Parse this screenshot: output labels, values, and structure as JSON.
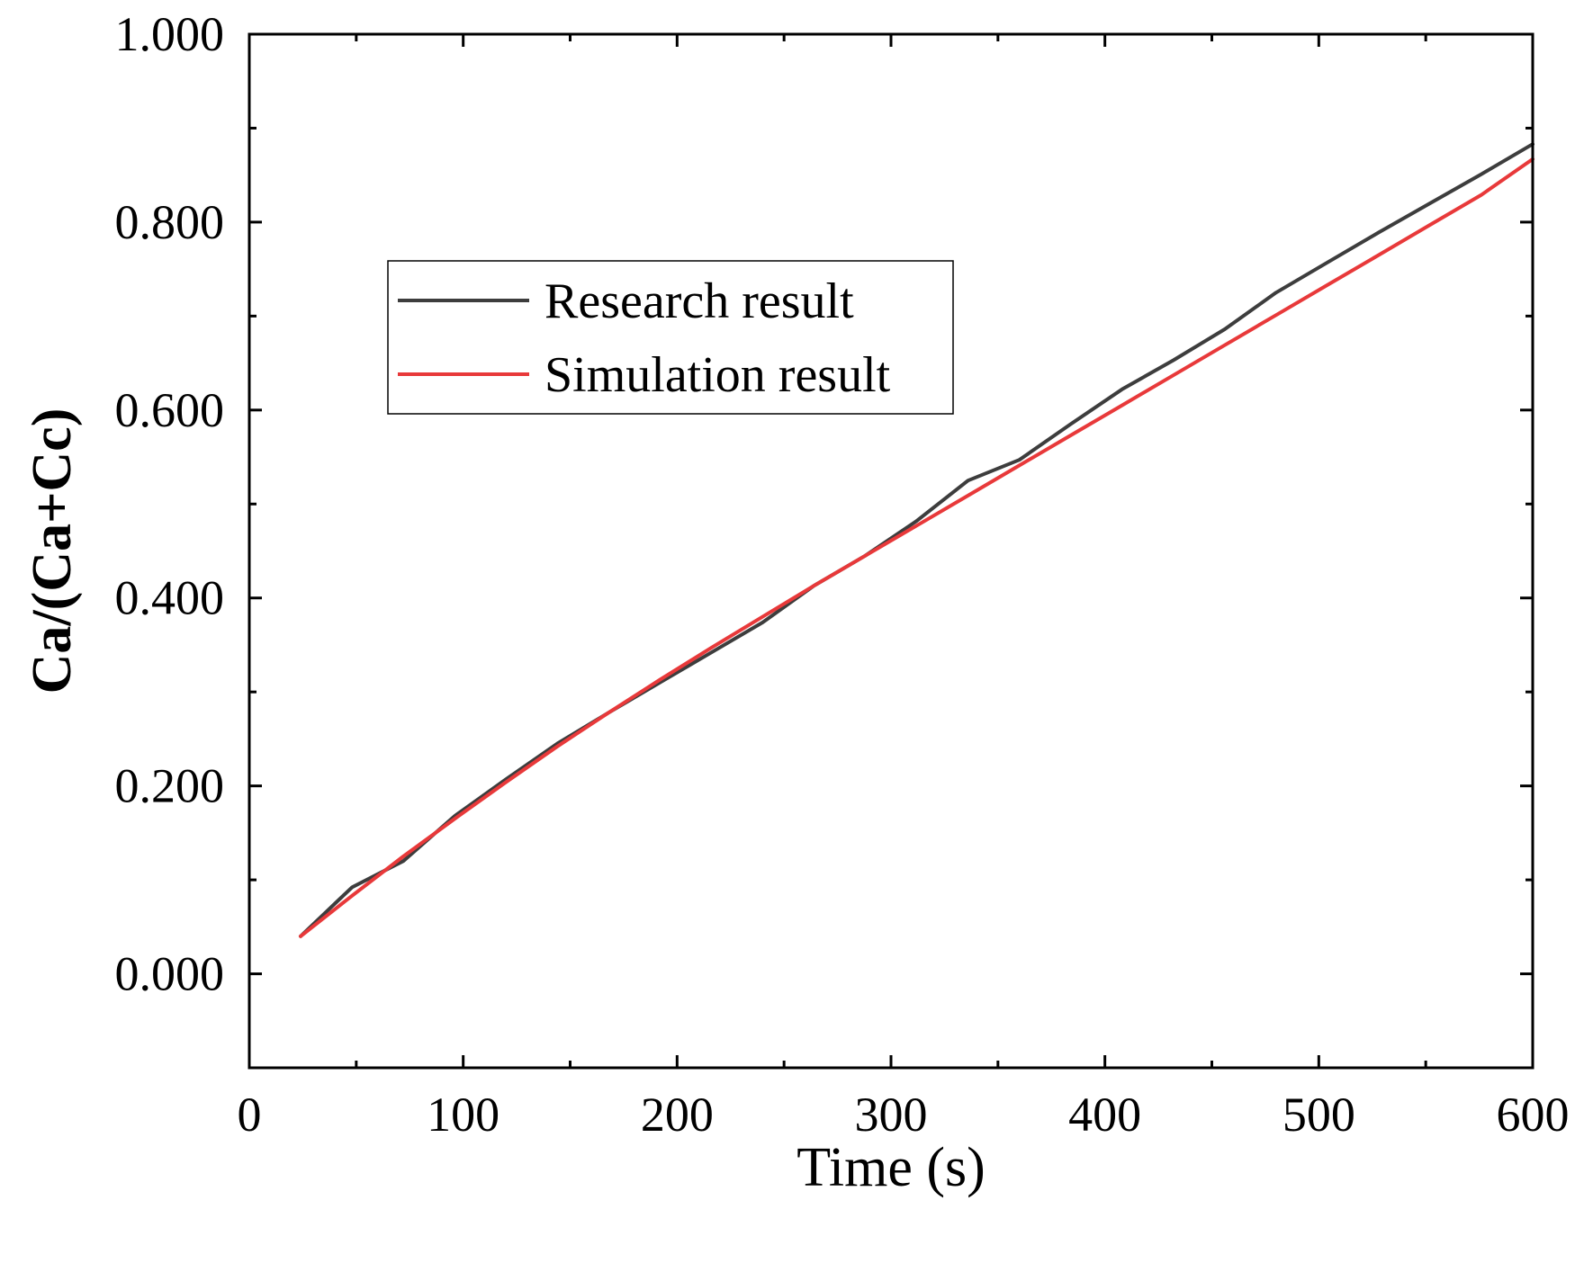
{
  "chart_data": {
    "type": "line",
    "title": "",
    "xlabel": "Time (s)",
    "ylabel": "Ca/(Ca+Cc)",
    "xlim": [
      0,
      600
    ],
    "ylim": [
      -0.1,
      1.0
    ],
    "x_ticks": [
      0,
      100,
      200,
      300,
      400,
      500,
      600
    ],
    "x_tick_labels": [
      "0",
      "100",
      "200",
      "300",
      "400",
      "500",
      "600"
    ],
    "y_ticks": [
      0.0,
      0.2,
      0.4,
      0.6,
      0.8,
      1.0
    ],
    "y_tick_labels": [
      "0.000",
      "0.200",
      "0.400",
      "0.600",
      "0.800",
      "1.000"
    ],
    "grid": false,
    "legend_position": "upper-left",
    "series": [
      {
        "name": "Research result",
        "color": "#3d3d3d",
        "x": [
          24,
          48,
          72,
          96,
          120,
          144,
          168,
          192,
          216,
          240,
          264,
          288,
          312,
          336,
          360,
          384,
          408,
          432,
          456,
          480,
          504,
          528,
          552,
          576,
          600
        ],
        "y": [
          0.04,
          0.092,
          0.12,
          0.168,
          0.207,
          0.245,
          0.278,
          0.31,
          0.342,
          0.374,
          0.413,
          0.445,
          0.482,
          0.525,
          0.547,
          0.585,
          0.622,
          0.653,
          0.686,
          0.725,
          0.757,
          0.789,
          0.82,
          0.851,
          0.883
        ]
      },
      {
        "name": "Simulation result",
        "color": "#e8393a",
        "x": [
          24,
          48,
          72,
          96,
          120,
          144,
          168,
          192,
          216,
          240,
          264,
          288,
          312,
          336,
          360,
          384,
          408,
          432,
          456,
          480,
          504,
          528,
          552,
          576,
          600
        ],
        "y": [
          0.04,
          0.083,
          0.125,
          0.165,
          0.204,
          0.242,
          0.278,
          0.313,
          0.347,
          0.38,
          0.413,
          0.445,
          0.477,
          0.509,
          0.541,
          0.573,
          0.605,
          0.637,
          0.669,
          0.701,
          0.733,
          0.765,
          0.797,
          0.829,
          0.867
        ]
      }
    ]
  }
}
